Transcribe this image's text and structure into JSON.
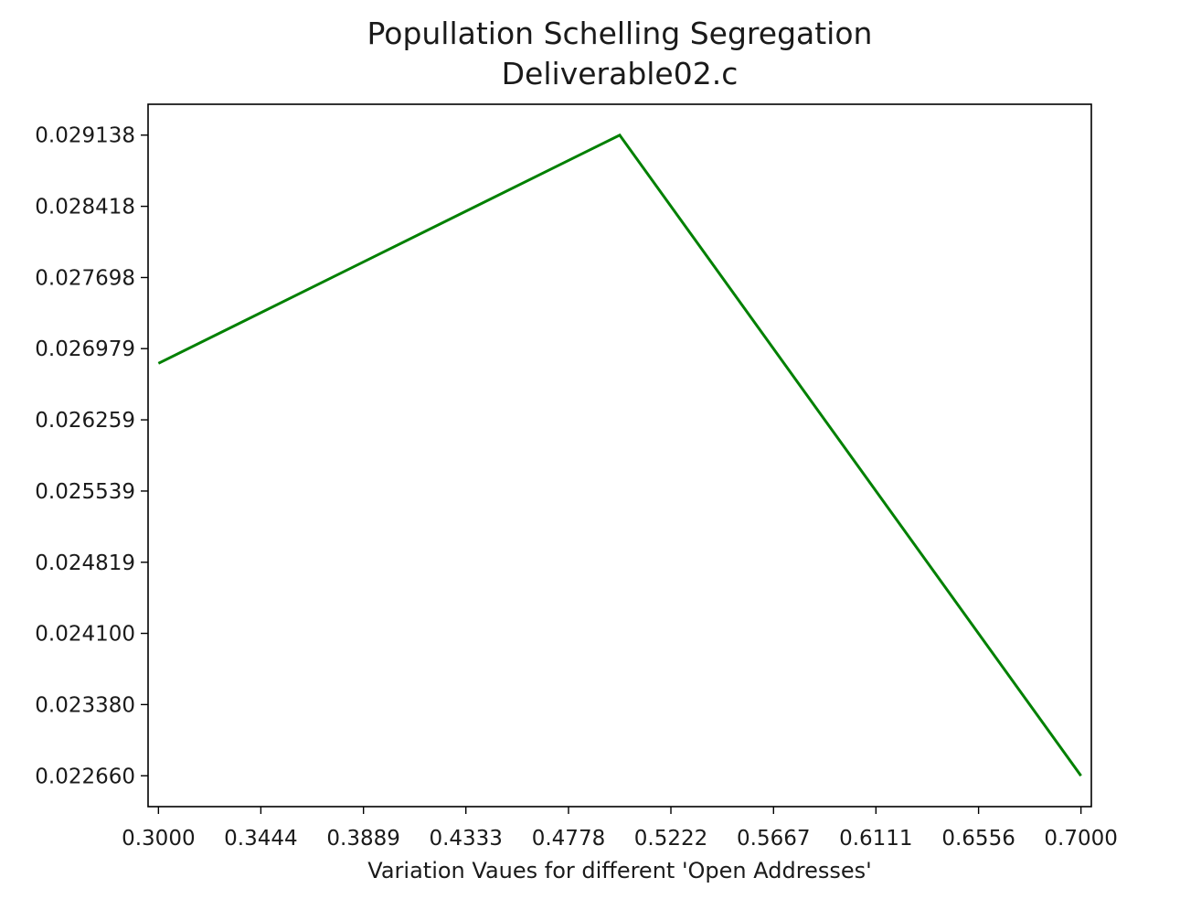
{
  "chart_data": {
    "type": "line",
    "title": "Popullation Schelling Segregation",
    "subtitle": "Deliverable02.c",
    "xlabel": "Variation Vaues for different 'Open Addresses'",
    "ylabel": "",
    "xlim": [
      0.2955,
      0.7045
    ],
    "ylim": [
      0.022348,
      0.02945
    ],
    "x_ticks": [
      "0.3000",
      "0.3444",
      "0.3889",
      "0.4333",
      "0.4778",
      "0.5222",
      "0.5667",
      "0.6111",
      "0.6556",
      "0.7000"
    ],
    "x_tick_values": [
      0.3,
      0.3444,
      0.3889,
      0.4333,
      0.4778,
      0.5222,
      0.5667,
      0.6111,
      0.6556,
      0.7
    ],
    "y_ticks": [
      "0.022660",
      "0.023380",
      "0.024100",
      "0.024819",
      "0.025539",
      "0.026259",
      "0.026979",
      "0.027698",
      "0.028418",
      "0.029138"
    ],
    "y_tick_values": [
      0.02266,
      0.02338,
      0.0241,
      0.024819,
      0.025539,
      0.026259,
      0.026979,
      0.027698,
      0.028418,
      0.029138
    ],
    "grid": false,
    "series": [
      {
        "x": [
          0.3,
          0.5,
          0.7
        ],
        "y": [
          0.02683,
          0.029138,
          0.02266
        ],
        "color": "#008000"
      }
    ]
  }
}
